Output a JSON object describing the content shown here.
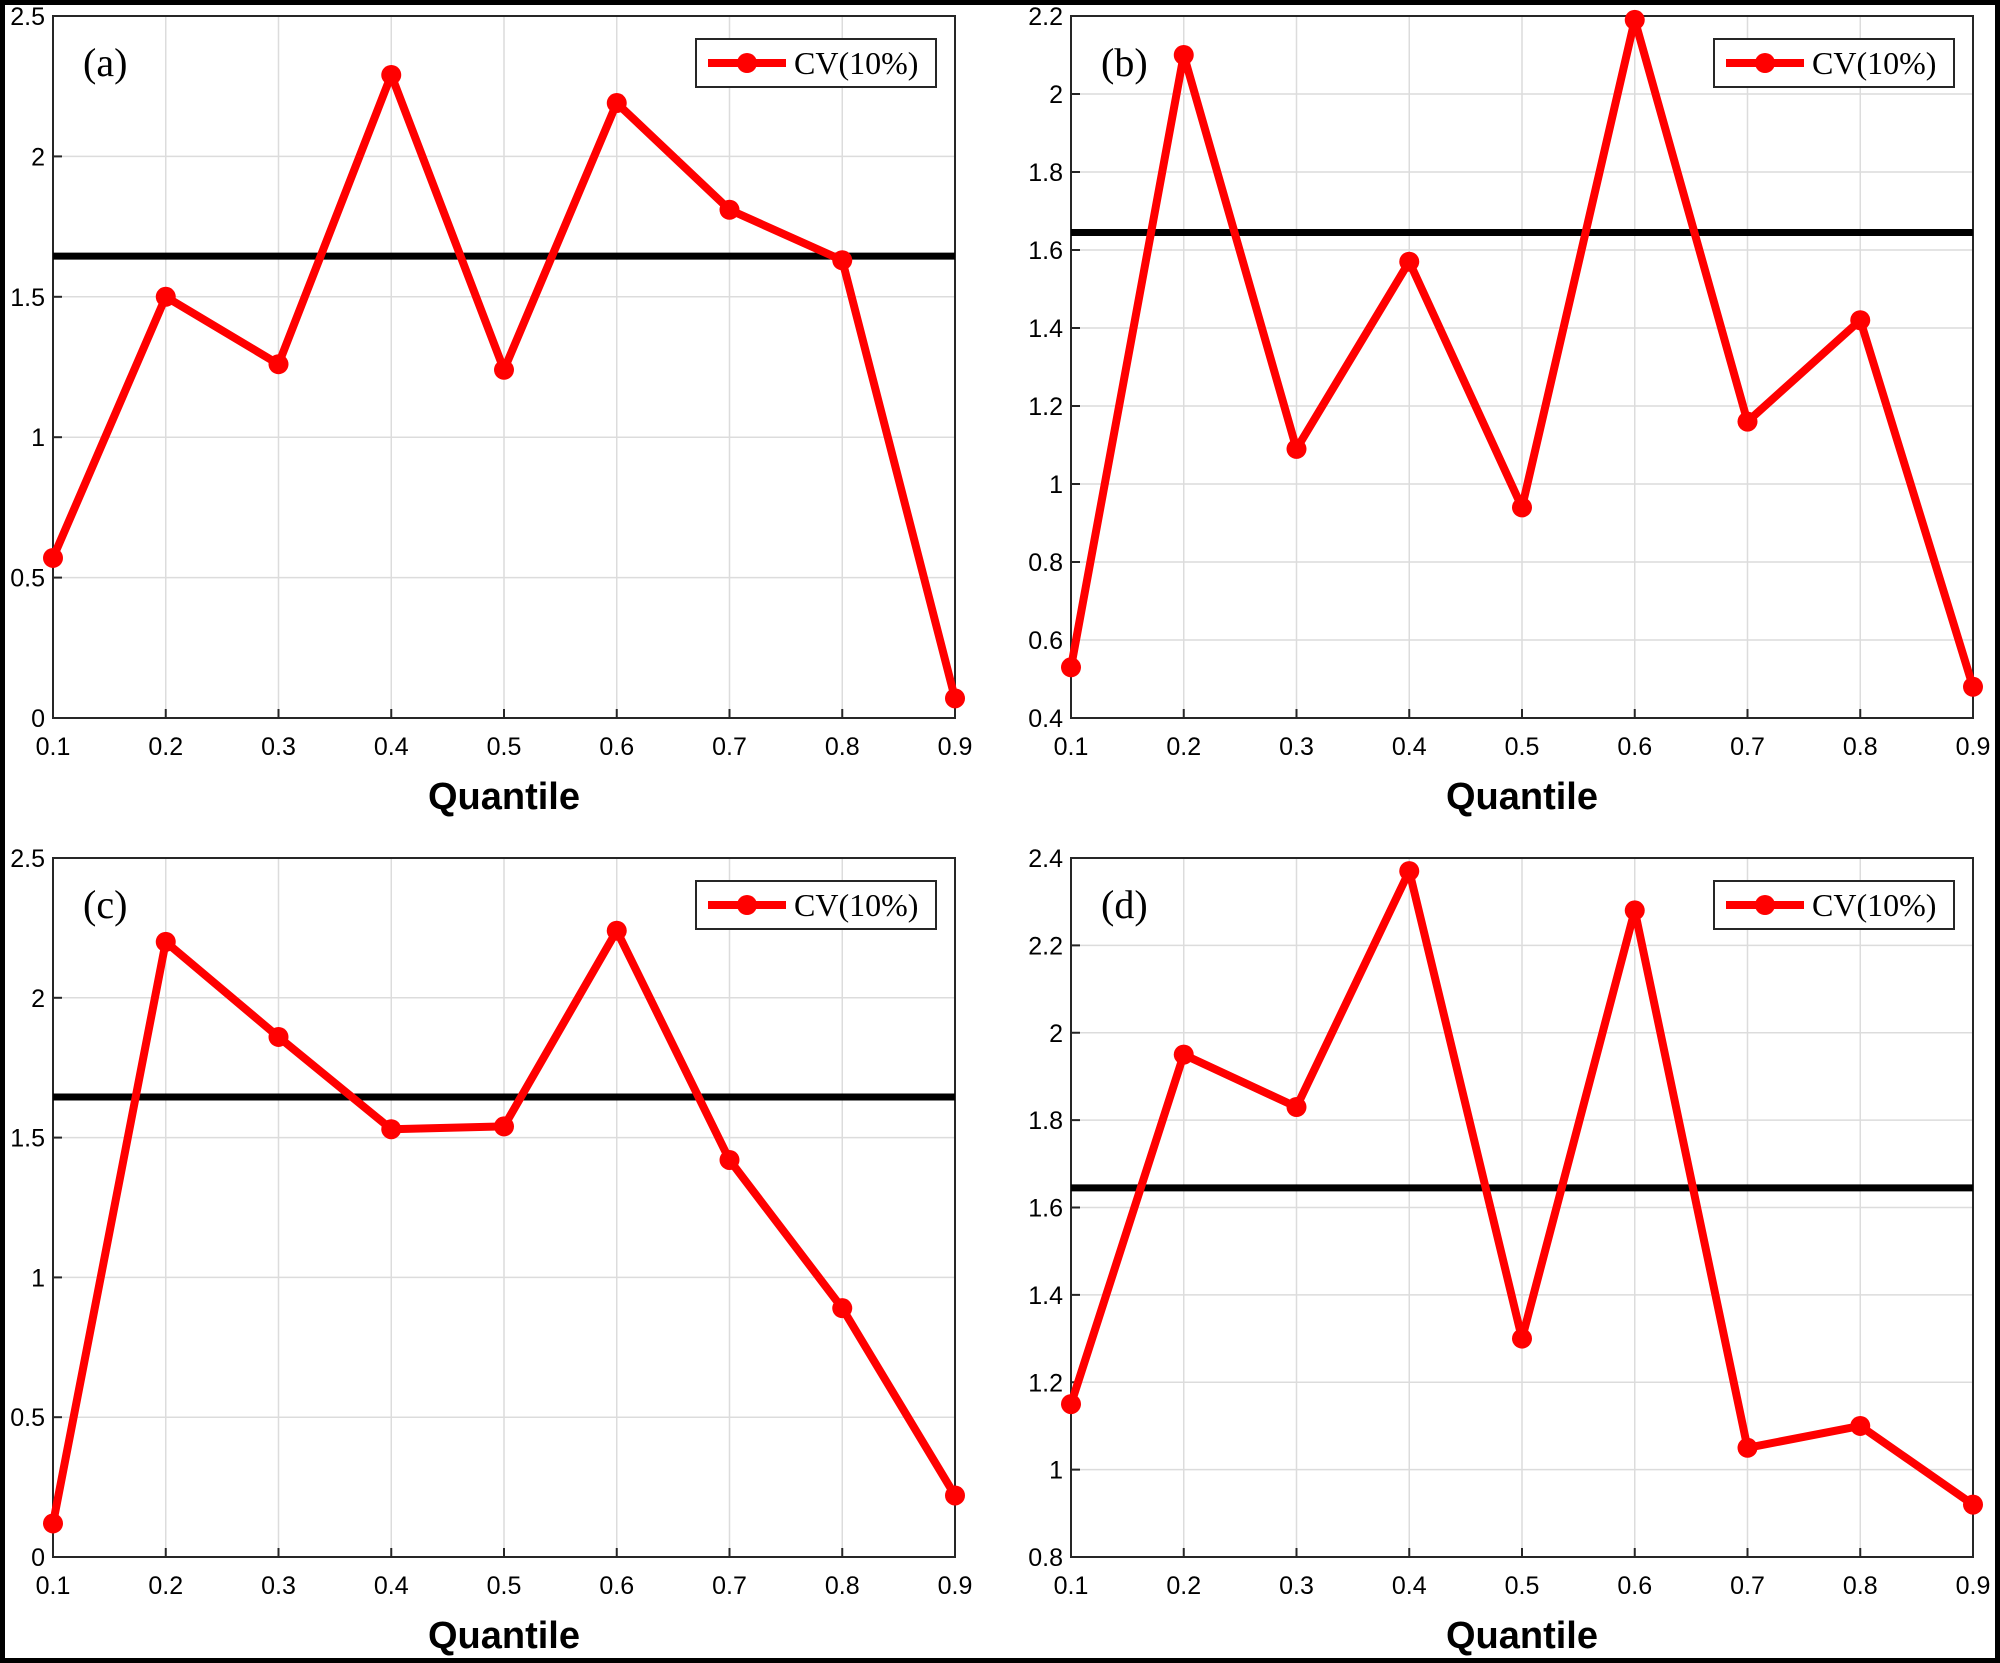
{
  "colors": {
    "series": "#ff0000",
    "threshold": "#000000",
    "grid": "#dcdcdc",
    "axis": "#262626"
  },
  "chart_data": [
    {
      "type": "line",
      "panel_label": "(a)",
      "xlabel": "Quantile",
      "x": [
        0.1,
        0.2,
        0.3,
        0.4,
        0.5,
        0.6,
        0.7,
        0.8,
        0.9
      ],
      "xticks": [
        "0.1",
        "0.2",
        "0.3",
        "0.4",
        "0.5",
        "0.6",
        "0.7",
        "0.8",
        "0.9"
      ],
      "xlim": [
        0.1,
        0.9
      ],
      "ylim": [
        0,
        2.5
      ],
      "yticks": [
        {
          "v": 0,
          "label": "0"
        },
        {
          "v": 0.5,
          "label": "0.5"
        },
        {
          "v": 1,
          "label": "1"
        },
        {
          "v": 1.5,
          "label": "1.5"
        },
        {
          "v": 2,
          "label": "2"
        },
        {
          "v": 2.5,
          "label": "2.5"
        }
      ],
      "series": [
        {
          "name": "CV(10%)",
          "values": [
            0.57,
            1.5,
            1.26,
            2.29,
            1.24,
            2.19,
            1.81,
            1.63,
            0.07
          ]
        }
      ],
      "threshold": 1.645,
      "grid": true,
      "legend": "top-right"
    },
    {
      "type": "line",
      "panel_label": "(b)",
      "xlabel": "Quantile",
      "x": [
        0.1,
        0.2,
        0.3,
        0.4,
        0.5,
        0.6,
        0.7,
        0.8,
        0.9
      ],
      "xticks": [
        "0.1",
        "0.2",
        "0.3",
        "0.4",
        "0.5",
        "0.6",
        "0.7",
        "0.8",
        "0.9"
      ],
      "xlim": [
        0.1,
        0.9
      ],
      "ylim": [
        0.4,
        2.2
      ],
      "yticks": [
        {
          "v": 0.4,
          "label": "0.4"
        },
        {
          "v": 0.6,
          "label": "0.6"
        },
        {
          "v": 0.8,
          "label": "0.8"
        },
        {
          "v": 1,
          "label": "1"
        },
        {
          "v": 1.2,
          "label": "1.2"
        },
        {
          "v": 1.4,
          "label": "1.4"
        },
        {
          "v": 1.6,
          "label": "1.6"
        },
        {
          "v": 1.8,
          "label": "1.8"
        },
        {
          "v": 2,
          "label": "2"
        },
        {
          "v": 2.2,
          "label": "2.2"
        }
      ],
      "series": [
        {
          "name": "CV(10%)",
          "values": [
            0.53,
            2.1,
            1.09,
            1.57,
            0.94,
            2.19,
            1.16,
            1.42,
            0.48
          ]
        }
      ],
      "threshold": 1.645,
      "grid": true,
      "legend": "top-right"
    },
    {
      "type": "line",
      "panel_label": "(c)",
      "xlabel": "Quantile",
      "x": [
        0.1,
        0.2,
        0.3,
        0.4,
        0.5,
        0.6,
        0.7,
        0.8,
        0.9
      ],
      "xticks": [
        "0.1",
        "0.2",
        "0.3",
        "0.4",
        "0.5",
        "0.6",
        "0.7",
        "0.8",
        "0.9"
      ],
      "xlim": [
        0.1,
        0.9
      ],
      "ylim": [
        0,
        2.5
      ],
      "yticks": [
        {
          "v": 0,
          "label": "0"
        },
        {
          "v": 0.5,
          "label": "0.5"
        },
        {
          "v": 1,
          "label": "1"
        },
        {
          "v": 1.5,
          "label": "1.5"
        },
        {
          "v": 2,
          "label": "2"
        },
        {
          "v": 2.5,
          "label": "2.5"
        }
      ],
      "series": [
        {
          "name": "CV(10%)",
          "values": [
            0.12,
            2.2,
            1.86,
            1.53,
            1.54,
            2.24,
            1.42,
            0.89,
            0.22
          ]
        }
      ],
      "threshold": 1.645,
      "grid": true,
      "legend": "top-right"
    },
    {
      "type": "line",
      "panel_label": "(d)",
      "xlabel": "Quantile",
      "x": [
        0.1,
        0.2,
        0.3,
        0.4,
        0.5,
        0.6,
        0.7,
        0.8,
        0.9
      ],
      "xticks": [
        "0.1",
        "0.2",
        "0.3",
        "0.4",
        "0.5",
        "0.6",
        "0.7",
        "0.8",
        "0.9"
      ],
      "xlim": [
        0.1,
        0.9
      ],
      "ylim": [
        0.8,
        2.4
      ],
      "yticks": [
        {
          "v": 0.8,
          "label": "0.8"
        },
        {
          "v": 1,
          "label": "1"
        },
        {
          "v": 1.2,
          "label": "1.2"
        },
        {
          "v": 1.4,
          "label": "1.4"
        },
        {
          "v": 1.6,
          "label": "1.6"
        },
        {
          "v": 1.8,
          "label": "1.8"
        },
        {
          "v": 2,
          "label": "2"
        },
        {
          "v": 2.2,
          "label": "2.2"
        },
        {
          "v": 2.4,
          "label": "2.4"
        }
      ],
      "series": [
        {
          "name": "CV(10%)",
          "values": [
            1.15,
            1.95,
            1.83,
            2.37,
            1.3,
            2.28,
            1.05,
            1.1,
            0.92
          ]
        }
      ],
      "threshold": 1.645,
      "grid": true,
      "legend": "top-right"
    }
  ]
}
